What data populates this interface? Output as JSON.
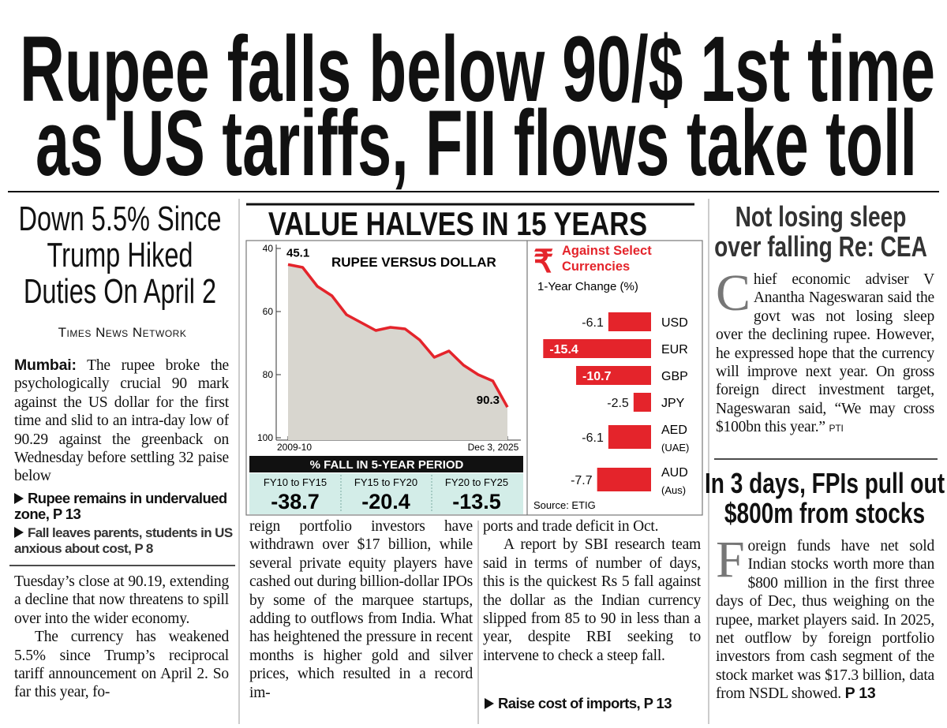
{
  "headline": {
    "lines": [
      "Rupee falls below 90/$ 1st time",
      "as US tariffs, FII flows take toll"
    ]
  },
  "lead_story": {
    "subhead": [
      "Down 5.5% Since",
      "Trump Hiked",
      "Duties On April 2"
    ],
    "byline": "Times News Network",
    "dateline": "Mumbai:",
    "columns": [
      [
        "The rupee broke the psychologically crucial 90 mark against the US dollar for the first time and slid to an intra-day low of 90.29 against the greenback on Wednesday before settling 32 paise below"
      ],
      [
        "Tuesday’s close at 90.19, extending a decline that now threatens to spill over into the wider economy.",
        "The currency has weakened 5.5% since Trump’s reciprocal tariff announcement on April 2. So far this year, fo-"
      ],
      [
        "reign portfolio investors have withdrawn over $17 billion, while several private equity players have cashed out during billion-dollar IPOs by some of the marquee startups, adding to outflows from India. What has heightened the pressure in recent months is higher gold and silver prices, which resulted in a record im-"
      ],
      [
        "ports and trade deficit in Oct.",
        "A report by SBI research team said in terms of number of days, this is the quickest Rs 5 fall against the dollar as the Indian currency slipped from 85 to 90 in less than a year, despite RBI seeking to intervene to check a steep fall."
      ]
    ],
    "crossrefs": [
      "Rupee remains in undervalued zone, P 13",
      "Fall leaves parents, students in US anxious about cost, P 8",
      "Raise cost of imports, P 13"
    ]
  },
  "graphic": {
    "title": "VALUE HALVES IN 15 YEARS",
    "fall_table": {
      "title": "% FALL IN 5-YEAR PERIOD",
      "periods": [
        "FY10 to FY15",
        "FY15 to FY20",
        "FY20 to FY25"
      ],
      "values": [
        -38.7,
        -20.4,
        -13.5
      ]
    }
  },
  "chart_data": [
    {
      "type": "line",
      "title": "RUPEE VERSUS DOLLAR",
      "categories": [
        "2009-10",
        null,
        null,
        null,
        null,
        null,
        null,
        null,
        null,
        null,
        null,
        null,
        null,
        null,
        null,
        "Dec 3, 2025"
      ],
      "series": [
        {
          "color": "#e4242b",
          "values": [
            45.1,
            46,
            52,
            55,
            61,
            63.5,
            66,
            65,
            65.5,
            69,
            74.5,
            72.5,
            77,
            80,
            82,
            90.3
          ]
        }
      ],
      "fill": "#d8d6cf",
      "ylim": [
        40,
        100
      ],
      "yticks": [
        40,
        60,
        80,
        100
      ],
      "y_inverted": true
    },
    {
      "type": "hbar",
      "symbol": "₹",
      "title": "Against Select Currencies",
      "subtitle": "1-Year Change (%)",
      "categories": [
        "USD",
        "EUR",
        "GBP",
        "JPY",
        "AED",
        "AUD"
      ],
      "category_notes": [
        null,
        null,
        null,
        null,
        "(UAE)",
        "(Aus)"
      ],
      "values": [
        -6.1,
        -15.4,
        -10.7,
        -2.5,
        -6.1,
        -7.7
      ],
      "color": "#e4242b",
      "xlim": [
        -16,
        0
      ],
      "source": "Source: ETIG"
    }
  ],
  "sidebar": [
    {
      "headline": [
        "Not losing sleep",
        "over falling Re: CEA"
      ],
      "dropcap": "C",
      "text": "hief economic adviser V Anantha Nageswaran said the govt was not losing sleep over the declining rupee. However, he expressed hope that the currency will improve next year. On gross foreign direct investment target, Nageswaran said, “We may cross $100bn this year.”",
      "credit": "PTI"
    },
    {
      "headline": [
        "In 3 days, FPIs pull out",
        "$800m from stocks"
      ],
      "dropcap": "F",
      "text": "oreign funds have net sold Indian stocks worth more than $800 million in the first three days of Dec, thus weighing on the rupee, market players said. In 2025, net outflow by foreign portfolio investors from cash segment of the stock market was $17.3 billion, data from NSDL showed.",
      "credit": "P 13"
    }
  ]
}
